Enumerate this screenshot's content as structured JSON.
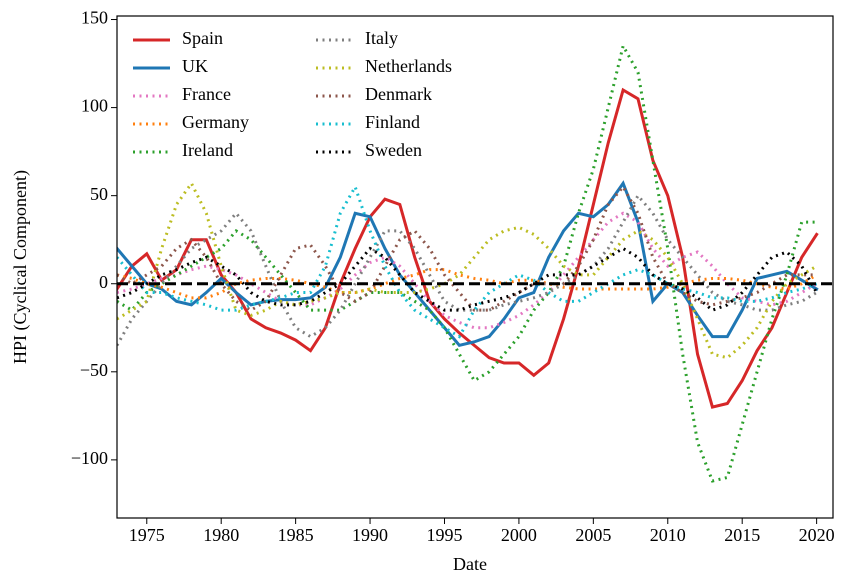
{
  "chart_data": {
    "type": "line",
    "xlabel": "Date",
    "ylabel": "HPI (Cyclical Component)",
    "x": [
      1973,
      1974,
      1975,
      1976,
      1977,
      1978,
      1979,
      1980,
      1981,
      1982,
      1983,
      1984,
      1985,
      1986,
      1987,
      1988,
      1989,
      1990,
      1991,
      1992,
      1993,
      1994,
      1995,
      1996,
      1997,
      1998,
      1999,
      2000,
      2001,
      2002,
      2003,
      2004,
      2005,
      2006,
      2007,
      2008,
      2009,
      2010,
      2011,
      2012,
      2013,
      2014,
      2015,
      2016,
      2017,
      2018,
      2019,
      2020
    ],
    "series": [
      {
        "name": "Spain",
        "color": "#d62728",
        "style": "solid",
        "values": [
          -3,
          10,
          17,
          2,
          8,
          25,
          25,
          5,
          -5,
          -20,
          -25,
          -28,
          -32,
          -38,
          -25,
          0,
          20,
          38,
          48,
          45,
          15,
          -10,
          -20,
          -28,
          -35,
          -42,
          -45,
          -45,
          -52,
          -45,
          -20,
          10,
          45,
          80,
          110,
          105,
          70,
          50,
          15,
          -40,
          -70,
          -68,
          -55,
          -38,
          -25,
          -5,
          15,
          28
        ]
      },
      {
        "name": "UK",
        "color": "#1f77b4",
        "style": "solid",
        "values": [
          20,
          10,
          0,
          -3,
          -10,
          -12,
          -5,
          3,
          -5,
          -12,
          -10,
          -9,
          -9,
          -8,
          -2,
          15,
          40,
          38,
          20,
          5,
          -5,
          -15,
          -25,
          -35,
          -33,
          -30,
          -20,
          -8,
          -5,
          15,
          30,
          40,
          38,
          45,
          57,
          35,
          -10,
          0,
          -5,
          -18,
          -30,
          -30,
          -15,
          3,
          5,
          7,
          2,
          -3
        ]
      },
      {
        "name": "France",
        "color": "#e377c2",
        "style": "dotted",
        "values": [
          -5,
          -3,
          0,
          3,
          5,
          8,
          10,
          8,
          5,
          0,
          -5,
          -10,
          -12,
          -12,
          -8,
          -3,
          5,
          12,
          15,
          10,
          0,
          -10,
          -18,
          -22,
          -25,
          -25,
          -22,
          -18,
          -12,
          -5,
          5,
          15,
          25,
          35,
          40,
          35,
          20,
          10,
          15,
          18,
          10,
          0,
          -8,
          -10,
          -12,
          -10,
          -5,
          0
        ]
      },
      {
        "name": "Germany",
        "color": "#ff7f0e",
        "style": "dotted",
        "values": [
          5,
          3,
          0,
          -2,
          -5,
          -8,
          -8,
          -5,
          0,
          2,
          3,
          3,
          2,
          0,
          -2,
          -5,
          -5,
          -3,
          0,
          3,
          5,
          8,
          8,
          5,
          3,
          2,
          0,
          2,
          2,
          0,
          -2,
          -3,
          -3,
          -3,
          -3,
          -3,
          -3,
          -2,
          0,
          2,
          3,
          3,
          2,
          0,
          -2,
          -3,
          0,
          5
        ]
      },
      {
        "name": "Ireland",
        "color": "#2ca02c",
        "style": "dotted",
        "values": [
          -10,
          -15,
          -5,
          0,
          5,
          10,
          15,
          20,
          30,
          25,
          15,
          5,
          -5,
          -15,
          -15,
          -15,
          -10,
          -5,
          -5,
          -5,
          -10,
          -15,
          -25,
          -40,
          -55,
          -50,
          -40,
          -30,
          -15,
          -5,
          10,
          40,
          65,
          100,
          135,
          120,
          70,
          20,
          -40,
          -90,
          -112,
          -110,
          -80,
          -50,
          -20,
          5,
          35,
          35
        ]
      },
      {
        "name": "Italy",
        "color": "#7f7f7f",
        "style": "dotted",
        "values": [
          -35,
          -20,
          -10,
          0,
          10,
          20,
          25,
          30,
          40,
          30,
          10,
          -10,
          -25,
          -30,
          -25,
          -15,
          0,
          15,
          30,
          30,
          20,
          5,
          -10,
          -15,
          -15,
          -15,
          -12,
          -10,
          -8,
          -5,
          0,
          5,
          10,
          20,
          35,
          50,
          40,
          25,
          15,
          5,
          -5,
          -10,
          -12,
          -15,
          -15,
          -12,
          -10,
          -5
        ]
      },
      {
        "name": "Netherlands",
        "color": "#bcbd22",
        "style": "dotted",
        "values": [
          -20,
          -15,
          -10,
          20,
          45,
          57,
          40,
          10,
          -15,
          -18,
          -15,
          -10,
          -12,
          -10,
          -8,
          -5,
          -5,
          -3,
          -5,
          -5,
          -5,
          -3,
          0,
          5,
          15,
          25,
          30,
          32,
          28,
          20,
          10,
          5,
          5,
          15,
          25,
          30,
          25,
          15,
          0,
          -20,
          -40,
          -42,
          -35,
          -25,
          -10,
          0,
          5,
          10
        ]
      },
      {
        "name": "Denmark",
        "color": "#8c564b",
        "style": "dotted",
        "values": [
          5,
          0,
          5,
          10,
          20,
          25,
          15,
          0,
          -10,
          -15,
          -10,
          5,
          20,
          22,
          10,
          -5,
          -10,
          -5,
          10,
          25,
          30,
          20,
          5,
          -5,
          -15,
          -15,
          -10,
          -5,
          0,
          0,
          0,
          10,
          25,
          45,
          55,
          40,
          15,
          0,
          -5,
          -10,
          -12,
          -10,
          -8,
          -5,
          0,
          5,
          5,
          5
        ]
      },
      {
        "name": "Finland",
        "color": "#17becf",
        "style": "dotted",
        "values": [
          15,
          5,
          -5,
          -5,
          -8,
          -10,
          -12,
          -15,
          -15,
          -12,
          -10,
          -8,
          -5,
          -5,
          10,
          40,
          55,
          30,
          10,
          -5,
          -15,
          -20,
          -25,
          -30,
          -15,
          -5,
          0,
          5,
          2,
          -5,
          -10,
          -10,
          -5,
          0,
          5,
          8,
          5,
          0,
          -3,
          -5,
          -8,
          -8,
          -10,
          -10,
          -8,
          -5,
          -3,
          0
        ]
      },
      {
        "name": "Sweden",
        "color": "#000000",
        "style": "dotted",
        "values": [
          -8,
          -5,
          0,
          5,
          8,
          12,
          15,
          10,
          5,
          -5,
          -10,
          -12,
          -12,
          -10,
          -5,
          0,
          10,
          20,
          15,
          5,
          -5,
          -10,
          -15,
          -15,
          -12,
          -10,
          -8,
          -5,
          0,
          5,
          5,
          5,
          10,
          15,
          20,
          15,
          5,
          0,
          -3,
          -8,
          -15,
          -12,
          -5,
          5,
          15,
          18,
          10,
          -5
        ]
      }
    ],
    "hlines": [
      0
    ],
    "xlim": [
      1973,
      2021.1
    ],
    "ylim": [
      -133,
      152
    ],
    "xticks": [
      1975,
      1980,
      1985,
      1990,
      1995,
      2000,
      2005,
      2010,
      2015,
      2020
    ],
    "yticks": [
      {
        "value": -100,
        "label": "−100"
      },
      {
        "value": -50,
        "label": "−50"
      },
      0,
      50,
      100,
      150
    ],
    "legend": "upper left",
    "grid": false
  }
}
